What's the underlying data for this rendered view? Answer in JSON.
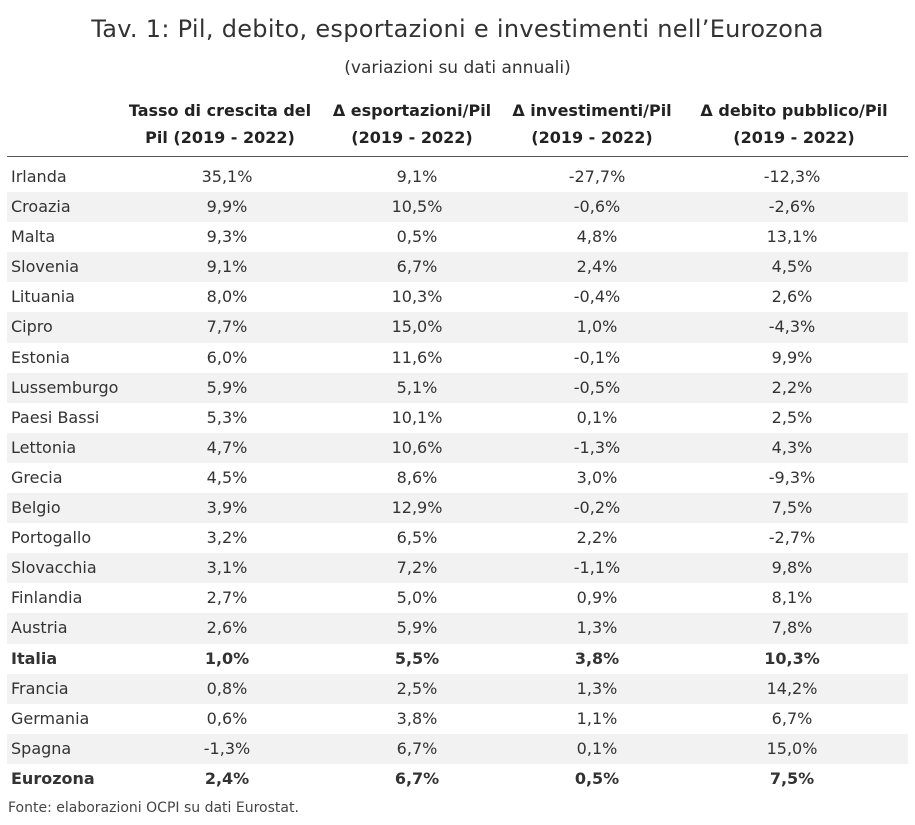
{
  "title": "Tav. 1: Pil, debito, esportazioni e investimenti nell’Eurozona",
  "subtitle": "(variazioni su dati annuali)",
  "source": "Fonte: elaborazioni OCPI su dati Eurostat.",
  "chart_data": {
    "type": "table",
    "headers": [
      {
        "line1": "",
        "line2": ""
      },
      {
        "line1": "Tasso di crescita del",
        "line2": "Pil (2019 - 2022)"
      },
      {
        "line1": "Δ esportazioni/Pil",
        "line2": "(2019 - 2022)"
      },
      {
        "line1": "Δ investimenti/Pil",
        "line2": "(2019 - 2022)"
      },
      {
        "line1": "Δ debito pubblico/Pil",
        "line2": "(2019 - 2022)"
      }
    ],
    "rows": [
      [
        "Irlanda",
        "35,1%",
        "9,1%",
        "-27,7%",
        "-12,3%"
      ],
      [
        "Croazia",
        "9,9%",
        "10,5%",
        "-0,6%",
        "-2,6%"
      ],
      [
        "Malta",
        "9,3%",
        "0,5%",
        "4,8%",
        "13,1%"
      ],
      [
        "Slovenia",
        "9,1%",
        "6,7%",
        "2,4%",
        "4,5%"
      ],
      [
        "Lituania",
        "8,0%",
        "10,3%",
        "-0,4%",
        "2,6%"
      ],
      [
        "Cipro",
        "7,7%",
        "15,0%",
        "1,0%",
        "-4,3%"
      ],
      [
        "Estonia",
        "6,0%",
        "11,6%",
        "-0,1%",
        "9,9%"
      ],
      [
        "Lussemburgo",
        "5,9%",
        "5,1%",
        "-0,5%",
        "2,2%"
      ],
      [
        "Paesi Bassi",
        "5,3%",
        "10,1%",
        "0,1%",
        "2,5%"
      ],
      [
        "Lettonia",
        "4,7%",
        "10,6%",
        "-1,3%",
        "4,3%"
      ],
      [
        "Grecia",
        "4,5%",
        "8,6%",
        "3,0%",
        "-9,3%"
      ],
      [
        "Belgio",
        "3,9%",
        "12,9%",
        "-0,2%",
        "7,5%"
      ],
      [
        "Portogallo",
        "3,2%",
        "6,5%",
        "2,2%",
        "-2,7%"
      ],
      [
        "Slovacchia",
        "3,1%",
        "7,2%",
        "-1,1%",
        "9,8%"
      ],
      [
        "Finlandia",
        "2,7%",
        "5,0%",
        "0,9%",
        "8,1%"
      ],
      [
        "Austria",
        "2,6%",
        "5,9%",
        "1,3%",
        "7,8%"
      ],
      [
        "Italia",
        "1,0%",
        "5,5%",
        "3,8%",
        "10,3%"
      ],
      [
        "Francia",
        "0,8%",
        "2,5%",
        "1,3%",
        "14,2%"
      ],
      [
        "Germania",
        "0,6%",
        "3,8%",
        "1,1%",
        "6,7%"
      ],
      [
        "Spagna",
        "-1,3%",
        "6,7%",
        "0,1%",
        "15,0%"
      ],
      [
        "Eurozona",
        "2,4%",
        "6,7%",
        "0,5%",
        "7,5%"
      ]
    ],
    "bold_rows": [
      "Italia",
      "Eurozona"
    ],
    "stripe_color": "#f2f2f2",
    "text_color": "#333333"
  }
}
